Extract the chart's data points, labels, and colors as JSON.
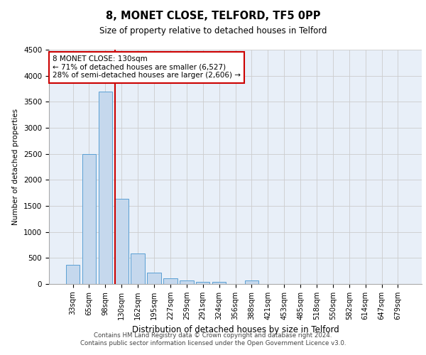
{
  "title_line1": "8, MONET CLOSE, TELFORD, TF5 0PP",
  "title_line2": "Size of property relative to detached houses in Telford",
  "xlabel": "Distribution of detached houses by size in Telford",
  "ylabel": "Number of detached properties",
  "footer_line1": "Contains HM Land Registry data © Crown copyright and database right 2024.",
  "footer_line2": "Contains public sector information licensed under the Open Government Licence v3.0.",
  "categories": [
    "33sqm",
    "65sqm",
    "98sqm",
    "130sqm",
    "162sqm",
    "195sqm",
    "227sqm",
    "259sqm",
    "291sqm",
    "324sqm",
    "356sqm",
    "388sqm",
    "421sqm",
    "453sqm",
    "485sqm",
    "518sqm",
    "550sqm",
    "582sqm",
    "614sqm",
    "647sqm",
    "679sqm"
  ],
  "values": [
    370,
    2500,
    3700,
    1630,
    590,
    225,
    110,
    65,
    45,
    35,
    0,
    65,
    0,
    0,
    0,
    0,
    0,
    0,
    0,
    0,
    0
  ],
  "bar_color": "#c5d8ed",
  "bar_edge_color": "#5a9fd4",
  "highlight_bar_index": 3,
  "highlight_line_color": "#cc0000",
  "ylim": [
    0,
    4500
  ],
  "yticks": [
    0,
    500,
    1000,
    1500,
    2000,
    2500,
    3000,
    3500,
    4000,
    4500
  ],
  "annotation_text": "8 MONET CLOSE: 130sqm\n← 71% of detached houses are smaller (6,527)\n28% of semi-detached houses are larger (2,606) →",
  "annotation_box_color": "#cc0000",
  "annotation_text_color": "#000000",
  "grid_color": "#cccccc",
  "background_color": "#e8eff8"
}
